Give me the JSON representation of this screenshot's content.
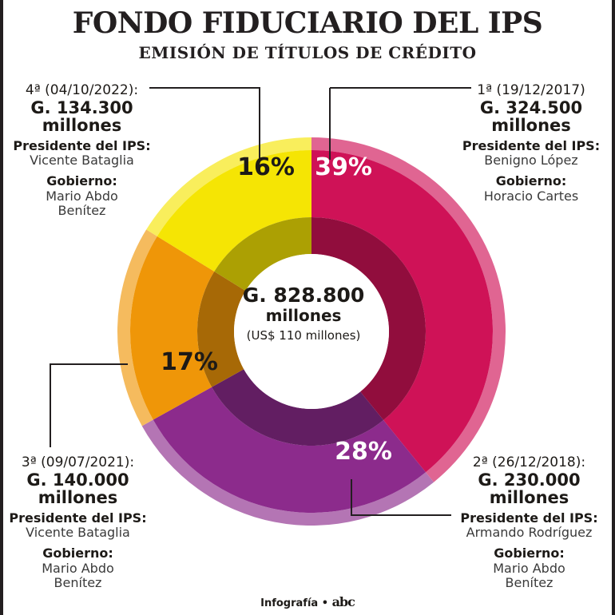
{
  "title": "FONDO FIDUCIARIO DEL IPS",
  "subtitle": "EMISIÓN DE TÍTULOS DE CRÉDITO",
  "center": {
    "amount": "G. 828.800",
    "unit": "millones",
    "usd": "(US$ 110 millones)"
  },
  "emissions": [
    {
      "date": "1ª (19/12/2017)",
      "amount": "G. 324.500",
      "unit": "millones",
      "role_label": "Presidente del IPS:",
      "president": "Benigno López",
      "gov_label": "Gobierno:",
      "government": "Horacio Cartes"
    },
    {
      "date": "2ª (26/12/2018):",
      "amount": "G. 230.000",
      "unit": "millones",
      "role_label": "Presidente del IPS:",
      "president": "Armando Rodríguez",
      "gov_label": "Gobierno:",
      "government": "Mario Abdo Benítez"
    },
    {
      "date": "3ª (09/07/2021):",
      "amount": "G. 140.000",
      "unit": "millones",
      "role_label": "Presidente del IPS:",
      "president": "Vicente Bataglia",
      "gov_label": "Gobierno:",
      "government": "Mario Abdo Benítez"
    },
    {
      "date": "4ª (04/10/2022):",
      "amount": "G. 134.300",
      "unit": "millones",
      "role_label": "Presidente del IPS:",
      "president": "Vicente Bataglia",
      "gov_label": "Gobierno:",
      "government": "Mario Abdo Benítez"
    }
  ],
  "chart_data": {
    "type": "pie",
    "variant": "donut",
    "categories": [
      "1ª (19/12/2017)",
      "2ª (26/12/2018)",
      "3ª (09/07/2021)",
      "4ª (04/10/2022)"
    ],
    "values": [
      324500,
      230000,
      140000,
      134300
    ],
    "percent_labels": [
      "39%",
      "28%",
      "17%",
      "16%"
    ],
    "total": 828800,
    "colors": [
      "#cf1257",
      "#8c2b8c",
      "#ef9608",
      "#f5e504"
    ],
    "label_colors": [
      "#ffffff",
      "#ffffff",
      "#1d1a17",
      "#1d1a17"
    ]
  },
  "footer": {
    "text": "Infografía",
    "bullet": "•",
    "logo": "abc"
  }
}
